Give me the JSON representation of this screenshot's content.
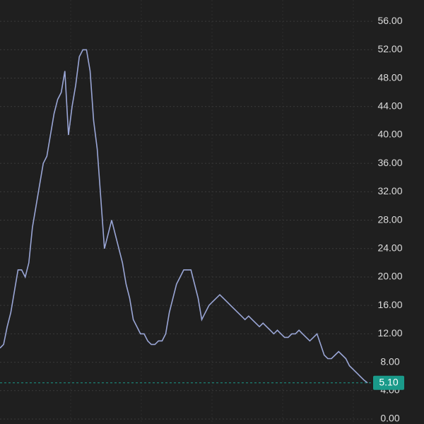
{
  "chart_data": {
    "type": "line",
    "values": [
      10,
      10.5,
      13,
      15,
      18,
      21,
      21,
      20,
      22,
      27,
      30,
      33,
      36,
      37,
      40,
      43,
      45,
      46,
      49,
      40,
      44,
      47,
      51,
      52,
      52,
      49,
      42,
      38,
      31,
      24,
      26,
      28,
      26,
      24,
      22,
      19,
      17,
      14,
      13,
      12,
      12,
      11,
      10.5,
      10.5,
      11,
      11,
      12,
      15,
      17,
      19,
      20,
      21,
      21,
      21,
      19,
      17,
      14,
      15,
      16,
      16.5,
      17,
      17.5,
      17,
      16.5,
      16,
      15.5,
      15,
      14.5,
      14,
      14.5,
      14,
      13.5,
      13,
      13.5,
      13,
      12.5,
      12,
      12.5,
      12,
      11.5,
      11.5,
      12,
      12,
      12.5,
      12,
      11.5,
      11,
      11.5,
      12,
      10.5,
      9,
      8.5,
      8.5,
      9,
      9.5,
      9,
      8.5,
      7.5,
      7,
      6.5,
      6,
      5.5,
      5.1
    ],
    "color": "#9aa6d6",
    "ylim": [
      -0.7,
      59
    ],
    "yticks": [
      {
        "value": 0,
        "label": "0.00"
      },
      {
        "value": 4,
        "label": "4.00"
      },
      {
        "value": 8,
        "label": "8.00"
      },
      {
        "value": 12,
        "label": "12.00"
      },
      {
        "value": 16,
        "label": "16.00"
      },
      {
        "value": 20,
        "label": "20.00"
      },
      {
        "value": 24,
        "label": "24.00"
      },
      {
        "value": 28,
        "label": "28.00"
      },
      {
        "value": 32,
        "label": "32.00"
      },
      {
        "value": 36,
        "label": "36.00"
      },
      {
        "value": 40,
        "label": "40.00"
      },
      {
        "value": 44,
        "label": "44.00"
      },
      {
        "value": 48,
        "label": "48.00"
      },
      {
        "value": 52,
        "label": "52.00"
      },
      {
        "value": 56,
        "label": "56.00"
      }
    ],
    "last_price": {
      "value": 5.1,
      "label": "5.10"
    },
    "last_price_color": "#1a9a8a",
    "grid": true
  }
}
